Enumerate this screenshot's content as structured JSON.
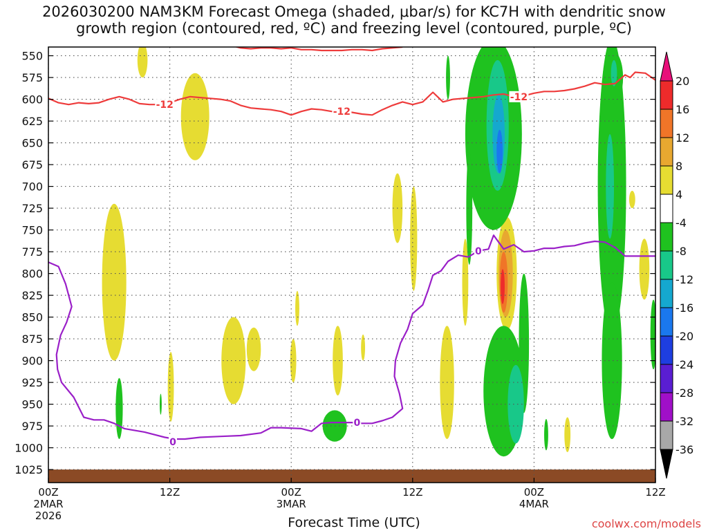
{
  "title": {
    "line1": "2026030200 NAM3KM Forecast Omega (shaded, μbar/s) for KC7H with dendritic snow",
    "line2": "growth region (contoured, red, ºC) and freezing level (contoured, purple, ºC)"
  },
  "chart_data": {
    "type": "time-height cross-section",
    "xlabel": "Forecast Time (UTC)",
    "ylabel": "",
    "y_axis": {
      "unit": "hPa",
      "range": [
        540,
        1040
      ],
      "ticks": [
        550,
        575,
        600,
        625,
        650,
        675,
        700,
        725,
        750,
        775,
        800,
        825,
        850,
        875,
        900,
        925,
        950,
        975,
        1000,
        1025
      ]
    },
    "x_axis": {
      "unit": "hours since 2026030200",
      "range": [
        0,
        60
      ],
      "ticks": [
        {
          "hour": 0,
          "label": "00Z",
          "sub1": "2MAR",
          "sub2": "2026"
        },
        {
          "hour": 12,
          "label": "12Z",
          "sub1": "",
          "sub2": ""
        },
        {
          "hour": 24,
          "label": "00Z",
          "sub1": "3MAR",
          "sub2": ""
        },
        {
          "hour": 36,
          "label": "12Z",
          "sub1": "",
          "sub2": ""
        },
        {
          "hour": 48,
          "label": "00Z",
          "sub1": "4MAR",
          "sub2": ""
        },
        {
          "hour": 60,
          "label": "12Z",
          "sub1": "",
          "sub2": ""
        }
      ]
    },
    "colorbar": {
      "unit": "μbar/s",
      "labels": [
        "20",
        "16",
        "12",
        "8",
        "4",
        "-4",
        "-8",
        "-12",
        "-16",
        "-20",
        "-24",
        "-28",
        "-32",
        "-36"
      ],
      "bins": [
        {
          "range": "above 20",
          "color": "#e8107a"
        },
        {
          "range": "16 to 20",
          "color": "#ee2b2b"
        },
        {
          "range": "12 to 16",
          "color": "#f07528"
        },
        {
          "range": "8 to 12",
          "color": "#e8a830"
        },
        {
          "range": "4 to 8",
          "color": "#e6dc32"
        },
        {
          "range": "-4 to 4",
          "color": "#ffffff"
        },
        {
          "range": "-8 to -4",
          "color": "#1fc21f"
        },
        {
          "range": "-12 to -8",
          "color": "#18c889"
        },
        {
          "range": "-16 to -12",
          "color": "#15a8cf"
        },
        {
          "range": "-20 to -16",
          "color": "#1a78ee"
        },
        {
          "range": "-24 to -20",
          "color": "#1e3ee0"
        },
        {
          "range": "-28 to -24",
          "color": "#5a1ed2"
        },
        {
          "range": "-32 to -28",
          "color": "#a00fc8"
        },
        {
          "range": "-36 to -32",
          "color": "#a8a8a8"
        },
        {
          "range": "below -36",
          "color": "#000000"
        }
      ]
    },
    "contours": [
      {
        "name": "dendritic growth region",
        "value": -12,
        "label": "-12",
        "color": "#ee3b3b",
        "label_points": [
          [
            11.5,
            606
          ],
          [
            29,
            614
          ],
          [
            46.5,
            597
          ]
        ],
        "points": [
          [
            0,
            599
          ],
          [
            1,
            604
          ],
          [
            2,
            606
          ],
          [
            3,
            604
          ],
          [
            4,
            605
          ],
          [
            5,
            604
          ],
          [
            6,
            600
          ],
          [
            7,
            597
          ],
          [
            8,
            600
          ],
          [
            9,
            605
          ],
          [
            10,
            606
          ],
          [
            11,
            606
          ],
          [
            12,
            604
          ],
          [
            13,
            600
          ],
          [
            14,
            597
          ],
          [
            15,
            598
          ],
          [
            16,
            599
          ],
          [
            17,
            600
          ],
          [
            18,
            602
          ],
          [
            19,
            607
          ],
          [
            20,
            610
          ],
          [
            21,
            611
          ],
          [
            22,
            612
          ],
          [
            23,
            614
          ],
          [
            24,
            618
          ],
          [
            25,
            614
          ],
          [
            26,
            611
          ],
          [
            27,
            612
          ],
          [
            28,
            614
          ],
          [
            29,
            614
          ],
          [
            30,
            615
          ],
          [
            31,
            617
          ],
          [
            32,
            618
          ],
          [
            33,
            612
          ],
          [
            34,
            607
          ],
          [
            35,
            603
          ],
          [
            36,
            606
          ],
          [
            37,
            603
          ],
          [
            38,
            592
          ],
          [
            39,
            603
          ],
          [
            40,
            600
          ],
          [
            41,
            599
          ],
          [
            42,
            598
          ],
          [
            43,
            597
          ],
          [
            44,
            595
          ],
          [
            45,
            594
          ],
          [
            46,
            597
          ],
          [
            47,
            596
          ],
          [
            48,
            593
          ],
          [
            49,
            591
          ],
          [
            50,
            591
          ],
          [
            51,
            590
          ],
          [
            52,
            588
          ],
          [
            53,
            585
          ],
          [
            54,
            581
          ],
          [
            55,
            583
          ],
          [
            56,
            582
          ],
          [
            57,
            572
          ],
          [
            57.5,
            575
          ],
          [
            58,
            569
          ],
          [
            59,
            570
          ],
          [
            60,
            578
          ]
        ]
      },
      {
        "name": "dendritic growth region (upper)",
        "value": -12,
        "label": "",
        "color": "#ee3b3b",
        "points": [
          [
            18,
            538
          ],
          [
            19,
            541
          ],
          [
            20,
            542
          ],
          [
            21,
            541
          ],
          [
            22,
            541
          ],
          [
            23,
            542
          ],
          [
            24,
            541
          ],
          [
            25,
            543
          ],
          [
            26,
            543
          ],
          [
            27,
            544
          ],
          [
            28,
            544
          ],
          [
            29,
            544
          ],
          [
            30,
            543
          ],
          [
            31,
            543
          ],
          [
            32,
            544
          ],
          [
            33,
            542
          ],
          [
            34,
            541
          ],
          [
            35,
            540
          ]
        ]
      },
      {
        "name": "freezing level",
        "value": 0,
        "label": "0",
        "color": "#9a1fc8",
        "label_points": [
          [
            12.3,
            993
          ],
          [
            30.5,
            971
          ],
          [
            42.5,
            774
          ]
        ],
        "points": [
          [
            0,
            787
          ],
          [
            1,
            792
          ],
          [
            1.7,
            812
          ],
          [
            2.3,
            838
          ],
          [
            1.8,
            856
          ],
          [
            1.2,
            871
          ],
          [
            0.8,
            893
          ],
          [
            0.9,
            910
          ],
          [
            1.3,
            925
          ],
          [
            2.5,
            942
          ],
          [
            3.5,
            965
          ],
          [
            4.5,
            968
          ],
          [
            5.5,
            968
          ],
          [
            6.5,
            972
          ],
          [
            7.5,
            978
          ],
          [
            8.5,
            980
          ],
          [
            9.5,
            982
          ],
          [
            10.5,
            985
          ],
          [
            11.5,
            988
          ],
          [
            12.5,
            990
          ],
          [
            13.5,
            990
          ],
          [
            15,
            988
          ],
          [
            17,
            987
          ],
          [
            19,
            986
          ],
          [
            21,
            983
          ],
          [
            22,
            977
          ],
          [
            23,
            977
          ],
          [
            25,
            978
          ],
          [
            26,
            981
          ],
          [
            27,
            972
          ],
          [
            28,
            971
          ],
          [
            29,
            971
          ],
          [
            30,
            971
          ],
          [
            31,
            972
          ],
          [
            32,
            972
          ],
          [
            33,
            969
          ],
          [
            34,
            965
          ],
          [
            35,
            955
          ],
          [
            34.7,
            938
          ],
          [
            34.2,
            918
          ],
          [
            34.3,
            900
          ],
          [
            34.8,
            880
          ],
          [
            35.5,
            864
          ],
          [
            36,
            846
          ],
          [
            37,
            836
          ],
          [
            37.5,
            820
          ],
          [
            38,
            802
          ],
          [
            38.8,
            797
          ],
          [
            39.5,
            786
          ],
          [
            40.5,
            779
          ],
          [
            41.5,
            781
          ],
          [
            42.5,
            774
          ],
          [
            43.5,
            772
          ],
          [
            44,
            756
          ],
          [
            45,
            772
          ],
          [
            46,
            767
          ],
          [
            47,
            775
          ],
          [
            48,
            774
          ],
          [
            49,
            771
          ],
          [
            50,
            771
          ],
          [
            51,
            769
          ],
          [
            52,
            768
          ],
          [
            53,
            765
          ],
          [
            54,
            763
          ],
          [
            55,
            764
          ],
          [
            56,
            770
          ],
          [
            57,
            780
          ],
          [
            58,
            780
          ],
          [
            60,
            780
          ]
        ]
      }
    ],
    "shaded_regions": [
      {
        "bin": "4 to 8",
        "center": [
          14.5,
          620
        ],
        "half_width": [
          1.4,
          50
        ]
      },
      {
        "bin": "4 to 8",
        "center": [
          9.3,
          555
        ],
        "half_width": [
          0.5,
          20
        ]
      },
      {
        "bin": "4 to 8",
        "center": [
          6.5,
          810
        ],
        "half_width": [
          1.2,
          90
        ]
      },
      {
        "bin": "4 to 8",
        "center": [
          12.1,
          930
        ],
        "half_width": [
          0.3,
          40
        ]
      },
      {
        "bin": "4 to 8",
        "center": [
          18.3,
          900
        ],
        "half_width": [
          1.2,
          50
        ]
      },
      {
        "bin": "4 to 8",
        "center": [
          20.3,
          887
        ],
        "half_width": [
          0.7,
          25
        ]
      },
      {
        "bin": "4 to 8",
        "center": [
          24.2,
          900
        ],
        "half_width": [
          0.3,
          25
        ]
      },
      {
        "bin": "4 to 8",
        "center": [
          24.6,
          840
        ],
        "half_width": [
          0.2,
          20
        ]
      },
      {
        "bin": "4 to 8",
        "center": [
          28.6,
          900
        ],
        "half_width": [
          0.5,
          40
        ]
      },
      {
        "bin": "4 to 8",
        "center": [
          31.1,
          885
        ],
        "half_width": [
          0.2,
          15
        ]
      },
      {
        "bin": "4 to 8",
        "center": [
          34.5,
          725
        ],
        "half_width": [
          0.5,
          40
        ]
      },
      {
        "bin": "4 to 8",
        "center": [
          36.1,
          760
        ],
        "half_width": [
          0.35,
          60
        ]
      },
      {
        "bin": "4 to 8",
        "center": [
          39.4,
          925
        ],
        "half_width": [
          0.7,
          65
        ]
      },
      {
        "bin": "4 to 8",
        "center": [
          41.2,
          810
        ],
        "half_width": [
          0.3,
          50
        ]
      },
      {
        "bin": "4 to 8",
        "center": [
          45.3,
          800
        ],
        "half_width": [
          1.0,
          65
        ]
      },
      {
        "bin": "4 to 8",
        "center": [
          51.3,
          985
        ],
        "half_width": [
          0.3,
          20
        ]
      },
      {
        "bin": "4 to 8",
        "center": [
          58.9,
          795
        ],
        "half_width": [
          0.5,
          35
        ]
      },
      {
        "bin": "4 to 8",
        "center": [
          57.7,
          715
        ],
        "half_width": [
          0.3,
          10
        ]
      },
      {
        "bin": "8 to 12",
        "center": [
          45.2,
          800
        ],
        "half_width": [
          0.7,
          50
        ]
      },
      {
        "bin": "12 to 16",
        "center": [
          45.0,
          810
        ],
        "half_width": [
          0.4,
          35
        ]
      },
      {
        "bin": "16 to 20",
        "center": [
          44.9,
          815
        ],
        "half_width": [
          0.2,
          20
        ]
      },
      {
        "bin": "-8 to -4",
        "center": [
          44,
          640
        ],
        "half_width": [
          2.8,
          110
        ]
      },
      {
        "bin": "-8 to -4",
        "center": [
          39.5,
          575
        ],
        "half_width": [
          0.2,
          25
        ]
      },
      {
        "bin": "-8 to -4",
        "center": [
          41.6,
          725
        ],
        "half_width": [
          0.3,
          65
        ]
      },
      {
        "bin": "-8 to -4",
        "center": [
          45,
          935
        ],
        "half_width": [
          2.0,
          75
        ]
      },
      {
        "bin": "-8 to -4",
        "center": [
          47,
          880
        ],
        "half_width": [
          0.5,
          80
        ]
      },
      {
        "bin": "-8 to -4",
        "center": [
          55.7,
          700
        ],
        "half_width": [
          1.4,
          170
        ]
      },
      {
        "bin": "-8 to -4",
        "center": [
          55.7,
          900
        ],
        "half_width": [
          1.0,
          90
        ]
      },
      {
        "bin": "-8 to -4",
        "center": [
          55.8,
          575
        ],
        "half_width": [
          1.0,
          30
        ]
      },
      {
        "bin": "-8 to -4",
        "center": [
          28.3,
          975
        ],
        "half_width": [
          1.2,
          18
        ]
      },
      {
        "bin": "-8 to -4",
        "center": [
          7.0,
          955
        ],
        "half_width": [
          0.35,
          35
        ]
      },
      {
        "bin": "-8 to -4",
        "center": [
          49.2,
          985
        ],
        "half_width": [
          0.2,
          18
        ]
      },
      {
        "bin": "-8 to -4",
        "center": [
          11.1,
          950
        ],
        "half_width": [
          0.1,
          12
        ]
      },
      {
        "bin": "-8 to -4",
        "center": [
          59.8,
          870
        ],
        "half_width": [
          0.3,
          40
        ]
      },
      {
        "bin": "-12 to -8",
        "center": [
          44.4,
          630
        ],
        "half_width": [
          1.1,
          75
        ]
      },
      {
        "bin": "-12 to -8",
        "center": [
          46.2,
          950
        ],
        "half_width": [
          0.8,
          45
        ]
      },
      {
        "bin": "-12 to -8",
        "center": [
          55.9,
          570
        ],
        "half_width": [
          0.3,
          15
        ]
      },
      {
        "bin": "-12 to -8",
        "center": [
          55.5,
          700
        ],
        "half_width": [
          0.4,
          60
        ]
      },
      {
        "bin": "-16 to -12",
        "center": [
          44.5,
          640
        ],
        "half_width": [
          0.6,
          45
        ]
      },
      {
        "bin": "-20 to -16",
        "center": [
          44.6,
          660
        ],
        "half_width": [
          0.3,
          25
        ]
      }
    ],
    "surface_fill": {
      "color": "#8b4a25",
      "pressure_top": 1025
    }
  },
  "colors": {
    "grid": "#555555",
    "frame": "#000000"
  },
  "footer": {
    "credit": "coolwx.com/models"
  }
}
